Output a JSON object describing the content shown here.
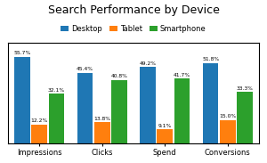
{
  "chart_data": {
    "type": "bar",
    "title": "Search Performance by Device",
    "categories": [
      "Impressions",
      "Clicks",
      "Spend",
      "Conversions"
    ],
    "series": [
      {
        "name": "Desktop",
        "values": [
          55.7,
          45.4,
          49.2,
          51.8
        ],
        "value_labels": [
          "55.7%",
          "45.4%",
          "49.2%",
          "51.8%"
        ]
      },
      {
        "name": "Tablet",
        "values": [
          12.2,
          13.8,
          9.1,
          15.0
        ],
        "value_labels": [
          "12.2%",
          "13.8%",
          "9.1%",
          "15.0%"
        ]
      },
      {
        "name": "Smartphone",
        "values": [
          32.1,
          40.8,
          41.7,
          33.3
        ],
        "value_labels": [
          "32.1%",
          "40.8%",
          "41.7%",
          "33.3%"
        ]
      }
    ],
    "ylim": [
      0,
      65
    ],
    "yticks": [],
    "tick_labels": "x",
    "data_labels": true,
    "legend": "upper center",
    "grid": false
  }
}
